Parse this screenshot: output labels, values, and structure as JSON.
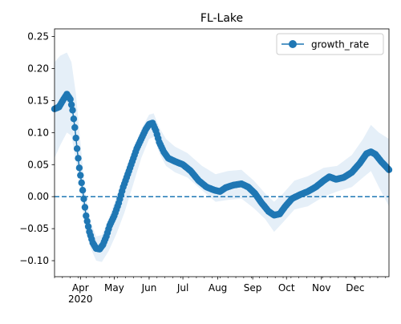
{
  "chart_data": {
    "type": "line",
    "title": "FL-Lake",
    "xlabel": "",
    "ylabel": "",
    "x_start": "2020-03-09",
    "x_end": "2020-12-31",
    "xlim": [
      "2020-03-09",
      "2020-12-31"
    ],
    "ylim": [
      -0.125,
      0.262
    ],
    "yticks": [
      -0.1,
      -0.05,
      0.0,
      0.05,
      0.1,
      0.15,
      0.2,
      0.25
    ],
    "ytick_labels": [
      "−0.10",
      "−0.05",
      "0.00",
      "0.05",
      "0.10",
      "0.15",
      "0.20",
      "0.25"
    ],
    "xticks": [
      {
        "date": "2020-04-01",
        "label": "Apr",
        "sublabel": "2020"
      },
      {
        "date": "2020-05-01",
        "label": "May",
        "sublabel": ""
      },
      {
        "date": "2020-06-01",
        "label": "Jun",
        "sublabel": ""
      },
      {
        "date": "2020-07-01",
        "label": "Jul",
        "sublabel": ""
      },
      {
        "date": "2020-08-01",
        "label": "Aug",
        "sublabel": ""
      },
      {
        "date": "2020-09-01",
        "label": "Sep",
        "sublabel": ""
      },
      {
        "date": "2020-10-01",
        "label": "Oct",
        "sublabel": ""
      },
      {
        "date": "2020-11-01",
        "label": "Nov",
        "sublabel": ""
      },
      {
        "date": "2020-12-01",
        "label": "Dec",
        "sublabel": ""
      }
    ],
    "legend": {
      "position": "top-right",
      "label": "growth_rate"
    },
    "reference_line": {
      "y": 0.0,
      "style": "dashed",
      "color": "#1f77b4"
    },
    "colors": {
      "series": "#1f77b4",
      "band": "#c6dcef"
    },
    "grid": false,
    "series": [
      {
        "name": "growth_rate",
        "marker": "circle",
        "points": [
          [
            "2020-03-09",
            0.137
          ],
          [
            "2020-03-13",
            0.14
          ],
          [
            "2020-03-17",
            0.152
          ],
          [
            "2020-03-20",
            0.16
          ],
          [
            "2020-03-23",
            0.152
          ],
          [
            "2020-03-25",
            0.135
          ],
          [
            "2020-03-27",
            0.108
          ],
          [
            "2020-03-29",
            0.075
          ],
          [
            "2020-03-31",
            0.045
          ],
          [
            "2020-04-03",
            0.01
          ],
          [
            "2020-04-06",
            -0.03
          ],
          [
            "2020-04-09",
            -0.055
          ],
          [
            "2020-04-12",
            -0.072
          ],
          [
            "2020-04-15",
            -0.081
          ],
          [
            "2020-04-18",
            -0.082
          ],
          [
            "2020-04-21",
            -0.075
          ],
          [
            "2020-04-24",
            -0.062
          ],
          [
            "2020-04-27",
            -0.045
          ],
          [
            "2020-05-01",
            -0.03
          ],
          [
            "2020-05-05",
            -0.01
          ],
          [
            "2020-05-09",
            0.015
          ],
          [
            "2020-05-13",
            0.035
          ],
          [
            "2020-05-17",
            0.055
          ],
          [
            "2020-05-21",
            0.075
          ],
          [
            "2020-05-25",
            0.09
          ],
          [
            "2020-05-29",
            0.105
          ],
          [
            "2020-06-01",
            0.113
          ],
          [
            "2020-06-04",
            0.115
          ],
          [
            "2020-06-07",
            0.103
          ],
          [
            "2020-06-10",
            0.085
          ],
          [
            "2020-06-14",
            0.07
          ],
          [
            "2020-06-18",
            0.06
          ],
          [
            "2020-06-24",
            0.055
          ],
          [
            "2020-07-01",
            0.05
          ],
          [
            "2020-07-08",
            0.04
          ],
          [
            "2020-07-15",
            0.025
          ],
          [
            "2020-07-22",
            0.015
          ],
          [
            "2020-07-29",
            0.01
          ],
          [
            "2020-08-03",
            0.008
          ],
          [
            "2020-08-08",
            0.014
          ],
          [
            "2020-08-15",
            0.018
          ],
          [
            "2020-08-22",
            0.02
          ],
          [
            "2020-08-28",
            0.015
          ],
          [
            "2020-09-03",
            0.005
          ],
          [
            "2020-09-09",
            -0.01
          ],
          [
            "2020-09-15",
            -0.023
          ],
          [
            "2020-09-20",
            -0.029
          ],
          [
            "2020-09-25",
            -0.027
          ],
          [
            "2020-09-30",
            -0.015
          ],
          [
            "2020-10-06",
            -0.003
          ],
          [
            "2020-10-13",
            0.003
          ],
          [
            "2020-10-20",
            0.008
          ],
          [
            "2020-10-27",
            0.015
          ],
          [
            "2020-11-03",
            0.025
          ],
          [
            "2020-11-08",
            0.031
          ],
          [
            "2020-11-14",
            0.027
          ],
          [
            "2020-11-21",
            0.03
          ],
          [
            "2020-11-28",
            0.038
          ],
          [
            "2020-12-05",
            0.052
          ],
          [
            "2020-12-11",
            0.067
          ],
          [
            "2020-12-15",
            0.07
          ],
          [
            "2020-12-19",
            0.066
          ],
          [
            "2020-12-24",
            0.055
          ],
          [
            "2020-12-31",
            0.042
          ]
        ]
      }
    ],
    "band": {
      "name": "growth_rate interval",
      "upper": [
        [
          "2020-03-09",
          0.21
        ],
        [
          "2020-03-14",
          0.22
        ],
        [
          "2020-03-20",
          0.225
        ],
        [
          "2020-03-24",
          0.21
        ],
        [
          "2020-03-28",
          0.16
        ],
        [
          "2020-04-01",
          0.085
        ],
        [
          "2020-04-05",
          0.01
        ],
        [
          "2020-04-10",
          -0.04
        ],
        [
          "2020-04-15",
          -0.062
        ],
        [
          "2020-04-20",
          -0.06
        ],
        [
          "2020-04-26",
          -0.035
        ],
        [
          "2020-05-03",
          0.0
        ],
        [
          "2020-05-10",
          0.035
        ],
        [
          "2020-05-18",
          0.075
        ],
        [
          "2020-05-25",
          0.105
        ],
        [
          "2020-06-01",
          0.128
        ],
        [
          "2020-06-05",
          0.13
        ],
        [
          "2020-06-10",
          0.108
        ],
        [
          "2020-06-16",
          0.09
        ],
        [
          "2020-06-24",
          0.078
        ],
        [
          "2020-07-05",
          0.068
        ],
        [
          "2020-07-18",
          0.048
        ],
        [
          "2020-07-30",
          0.035
        ],
        [
          "2020-08-10",
          0.04
        ],
        [
          "2020-08-22",
          0.042
        ],
        [
          "2020-09-02",
          0.025
        ],
        [
          "2020-09-12",
          0.005
        ],
        [
          "2020-09-20",
          -0.008
        ],
        [
          "2020-09-28",
          0.005
        ],
        [
          "2020-10-08",
          0.025
        ],
        [
          "2020-10-20",
          0.032
        ],
        [
          "2020-11-03",
          0.045
        ],
        [
          "2020-11-15",
          0.048
        ],
        [
          "2020-11-28",
          0.065
        ],
        [
          "2020-12-08",
          0.09
        ],
        [
          "2020-12-15",
          0.112
        ],
        [
          "2020-12-22",
          0.1
        ],
        [
          "2020-12-31",
          0.09
        ]
      ],
      "lower": [
        [
          "2020-03-09",
          0.06
        ],
        [
          "2020-03-14",
          0.08
        ],
        [
          "2020-03-20",
          0.1
        ],
        [
          "2020-03-24",
          0.095
        ],
        [
          "2020-03-28",
          0.055
        ],
        [
          "2020-04-01",
          0.01
        ],
        [
          "2020-04-05",
          -0.05
        ],
        [
          "2020-04-10",
          -0.08
        ],
        [
          "2020-04-15",
          -0.1
        ],
        [
          "2020-04-20",
          -0.102
        ],
        [
          "2020-04-26",
          -0.085
        ],
        [
          "2020-05-03",
          -0.058
        ],
        [
          "2020-05-10",
          -0.025
        ],
        [
          "2020-05-18",
          0.02
        ],
        [
          "2020-05-25",
          0.06
        ],
        [
          "2020-06-01",
          0.09
        ],
        [
          "2020-06-05",
          0.093
        ],
        [
          "2020-06-10",
          0.068
        ],
        [
          "2020-06-16",
          0.048
        ],
        [
          "2020-06-24",
          0.038
        ],
        [
          "2020-07-05",
          0.03
        ],
        [
          "2020-07-18",
          0.01
        ],
        [
          "2020-07-30",
          -0.008
        ],
        [
          "2020-08-10",
          -0.005
        ],
        [
          "2020-08-22",
          -0.003
        ],
        [
          "2020-09-02",
          -0.018
        ],
        [
          "2020-09-12",
          -0.035
        ],
        [
          "2020-09-20",
          -0.055
        ],
        [
          "2020-09-28",
          -0.04
        ],
        [
          "2020-10-08",
          -0.02
        ],
        [
          "2020-10-20",
          -0.015
        ],
        [
          "2020-11-03",
          0.0
        ],
        [
          "2020-11-15",
          0.008
        ],
        [
          "2020-11-28",
          0.015
        ],
        [
          "2020-12-08",
          0.03
        ],
        [
          "2020-12-15",
          0.04
        ],
        [
          "2020-12-22",
          0.015
        ],
        [
          "2020-12-31",
          -0.015
        ]
      ]
    }
  }
}
